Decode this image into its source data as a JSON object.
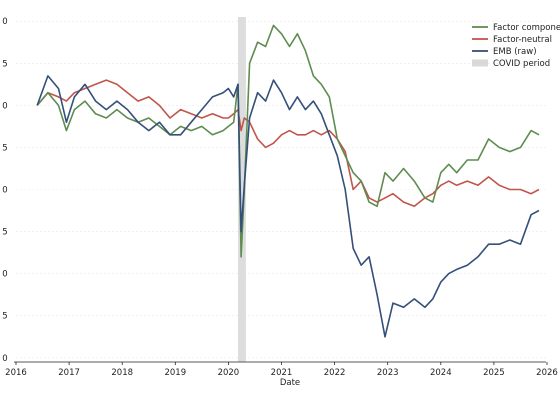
{
  "chart_data": {
    "type": "line",
    "title": "",
    "xlabel": "Date",
    "ylabel": "",
    "x_ticks": [
      "2016",
      "2017",
      "2018",
      "2019",
      "2020",
      "2021",
      "2022",
      "2023",
      "2024",
      "2025",
      "2026"
    ],
    "y_ticks": [
      "0",
      "5",
      "0",
      "5",
      "0",
      "5",
      "0",
      "5",
      "0"
    ],
    "xlim": [
      2016.0,
      2026.0
    ],
    "ylim": [
      -0.5,
      40.5
    ],
    "legend_position": "top-right",
    "grid": "horizontal dotted",
    "shaded_region": {
      "label": "COVID period",
      "x_start": 2020.18,
      "x_end": 2020.33,
      "color": "#d9d9d9"
    },
    "series": [
      {
        "name": "Factor component",
        "color": "#5e8c51",
        "x": [
          2016.4,
          2016.6,
          2016.8,
          2016.95,
          2017.1,
          2017.3,
          2017.5,
          2017.7,
          2017.9,
          2018.1,
          2018.3,
          2018.5,
          2018.7,
          2018.9,
          2019.1,
          2019.3,
          2019.5,
          2019.7,
          2019.9,
          2020.0,
          2020.1,
          2020.18,
          2020.24,
          2020.3,
          2020.4,
          2020.55,
          2020.7,
          2020.85,
          2021.0,
          2021.15,
          2021.3,
          2021.45,
          2021.6,
          2021.75,
          2021.9,
          2022.05,
          2022.2,
          2022.35,
          2022.5,
          2022.65,
          2022.8,
          2022.95,
          2023.1,
          2023.3,
          2023.5,
          2023.7,
          2023.85,
          2024.0,
          2024.15,
          2024.3,
          2024.5,
          2024.7,
          2024.9,
          2025.1,
          2025.3,
          2025.5,
          2025.7,
          2025.85
        ],
        "values": [
          30.0,
          31.5,
          30.0,
          27.0,
          29.5,
          30.5,
          29.0,
          28.5,
          29.5,
          28.5,
          28.0,
          28.5,
          27.5,
          26.5,
          27.5,
          27.0,
          27.5,
          26.5,
          27.0,
          27.5,
          28.0,
          32.5,
          12.0,
          20.0,
          35.0,
          37.5,
          37.0,
          39.5,
          38.5,
          37.0,
          38.5,
          36.5,
          33.5,
          32.5,
          31.0,
          26.0,
          24.0,
          22.0,
          21.0,
          18.5,
          18.0,
          22.0,
          21.0,
          22.5,
          21.0,
          19.0,
          18.5,
          22.0,
          23.0,
          22.0,
          23.5,
          23.5,
          26.0,
          25.0,
          24.5,
          25.0,
          27.0,
          26.5
        ]
      },
      {
        "name": "Factor-neutral",
        "color": "#c0564b",
        "x": [
          2016.4,
          2016.6,
          2016.8,
          2016.95,
          2017.1,
          2017.3,
          2017.5,
          2017.7,
          2017.9,
          2018.1,
          2018.3,
          2018.5,
          2018.7,
          2018.9,
          2019.1,
          2019.3,
          2019.5,
          2019.7,
          2019.9,
          2020.0,
          2020.1,
          2020.18,
          2020.24,
          2020.3,
          2020.4,
          2020.55,
          2020.7,
          2020.85,
          2021.0,
          2021.15,
          2021.3,
          2021.45,
          2021.6,
          2021.75,
          2021.9,
          2022.05,
          2022.2,
          2022.35,
          2022.5,
          2022.65,
          2022.8,
          2022.95,
          2023.1,
          2023.3,
          2023.5,
          2023.7,
          2023.85,
          2024.0,
          2024.15,
          2024.3,
          2024.5,
          2024.7,
          2024.9,
          2025.1,
          2025.3,
          2025.5,
          2025.7,
          2025.85
        ],
        "values": [
          30.0,
          31.5,
          31.0,
          30.5,
          31.5,
          32.0,
          32.5,
          33.0,
          32.5,
          31.5,
          30.5,
          31.0,
          30.0,
          28.5,
          29.5,
          29.0,
          28.5,
          29.0,
          28.5,
          28.5,
          29.0,
          29.5,
          27.0,
          28.5,
          28.0,
          26.0,
          25.0,
          25.5,
          26.5,
          27.0,
          26.5,
          26.5,
          27.0,
          26.5,
          27.0,
          26.0,
          24.5,
          20.0,
          21.0,
          19.0,
          18.5,
          19.0,
          19.5,
          18.5,
          18.0,
          19.0,
          19.5,
          20.5,
          21.0,
          20.5,
          21.0,
          20.5,
          21.5,
          20.5,
          20.0,
          20.0,
          19.5,
          20.0
        ]
      },
      {
        "name": "EMB (raw)",
        "color": "#34507a",
        "x": [
          2016.4,
          2016.6,
          2016.8,
          2016.95,
          2017.1,
          2017.3,
          2017.5,
          2017.7,
          2017.9,
          2018.1,
          2018.3,
          2018.5,
          2018.7,
          2018.9,
          2019.1,
          2019.3,
          2019.5,
          2019.7,
          2019.9,
          2020.0,
          2020.1,
          2020.18,
          2020.24,
          2020.3,
          2020.4,
          2020.55,
          2020.7,
          2020.85,
          2021.0,
          2021.15,
          2021.3,
          2021.45,
          2021.6,
          2021.75,
          2021.9,
          2022.05,
          2022.2,
          2022.35,
          2022.5,
          2022.65,
          2022.8,
          2022.95,
          2023.1,
          2023.3,
          2023.5,
          2023.7,
          2023.85,
          2024.0,
          2024.15,
          2024.3,
          2024.5,
          2024.7,
          2024.9,
          2025.1,
          2025.3,
          2025.5,
          2025.7,
          2025.85
        ],
        "values": [
          30.0,
          33.5,
          32.0,
          28.0,
          31.0,
          32.5,
          30.5,
          29.5,
          30.5,
          29.5,
          28.0,
          27.0,
          28.0,
          26.5,
          26.5,
          28.0,
          29.5,
          31.0,
          31.5,
          32.0,
          31.0,
          32.5,
          15.0,
          20.5,
          28.5,
          31.5,
          30.5,
          33.0,
          31.5,
          29.5,
          31.0,
          29.5,
          30.5,
          29.0,
          26.5,
          24.0,
          20.0,
          13.0,
          11.0,
          12.0,
          7.5,
          2.5,
          6.5,
          6.0,
          7.0,
          6.0,
          7.0,
          9.0,
          10.0,
          10.5,
          11.0,
          12.0,
          13.5,
          13.5,
          14.0,
          13.5,
          17.0,
          17.5
        ]
      }
    ],
    "legend": [
      {
        "label": "Factor component",
        "type": "line",
        "color": "#5e8c51"
      },
      {
        "label": "Factor-neutral",
        "type": "line",
        "color": "#c0564b"
      },
      {
        "label": "EMB (raw)",
        "type": "line",
        "color": "#34507a"
      },
      {
        "label": "COVID period",
        "type": "patch",
        "color": "#d9d9d9"
      }
    ]
  }
}
